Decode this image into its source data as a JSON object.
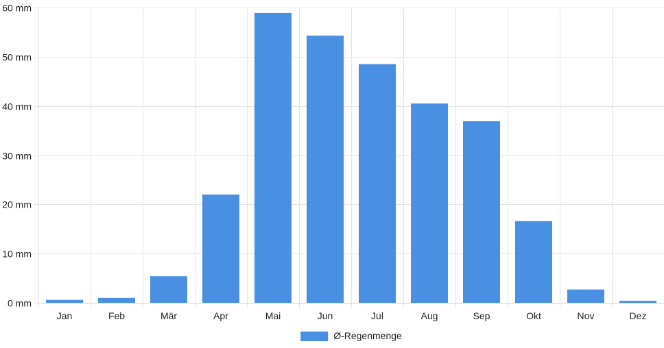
{
  "colors": {
    "bar": "#4a90e2",
    "grid": "#e4e4e4",
    "axis": "#cccccc",
    "text": "#222222"
  },
  "chart_data": {
    "type": "bar",
    "categories": [
      "Jan",
      "Feb",
      "Mär",
      "Apr",
      "Mai",
      "Jun",
      "Jul",
      "Aug",
      "Sep",
      "Okt",
      "Nov",
      "Dez"
    ],
    "series": [
      {
        "name": "Ø-Regenmenge",
        "values": [
          0.6,
          1.0,
          5.4,
          22.0,
          58.9,
          54.3,
          48.5,
          40.5,
          36.9,
          16.6,
          2.7,
          0.4
        ]
      }
    ],
    "ylim": [
      0,
      60
    ],
    "yticks": [
      0,
      10,
      20,
      30,
      40,
      50,
      60
    ],
    "ytick_labels": [
      "0 mm",
      "10 mm",
      "20 mm",
      "30 mm",
      "40 mm",
      "50 mm",
      "60 mm"
    ],
    "grid": true,
    "legend_position": "bottom-center"
  }
}
